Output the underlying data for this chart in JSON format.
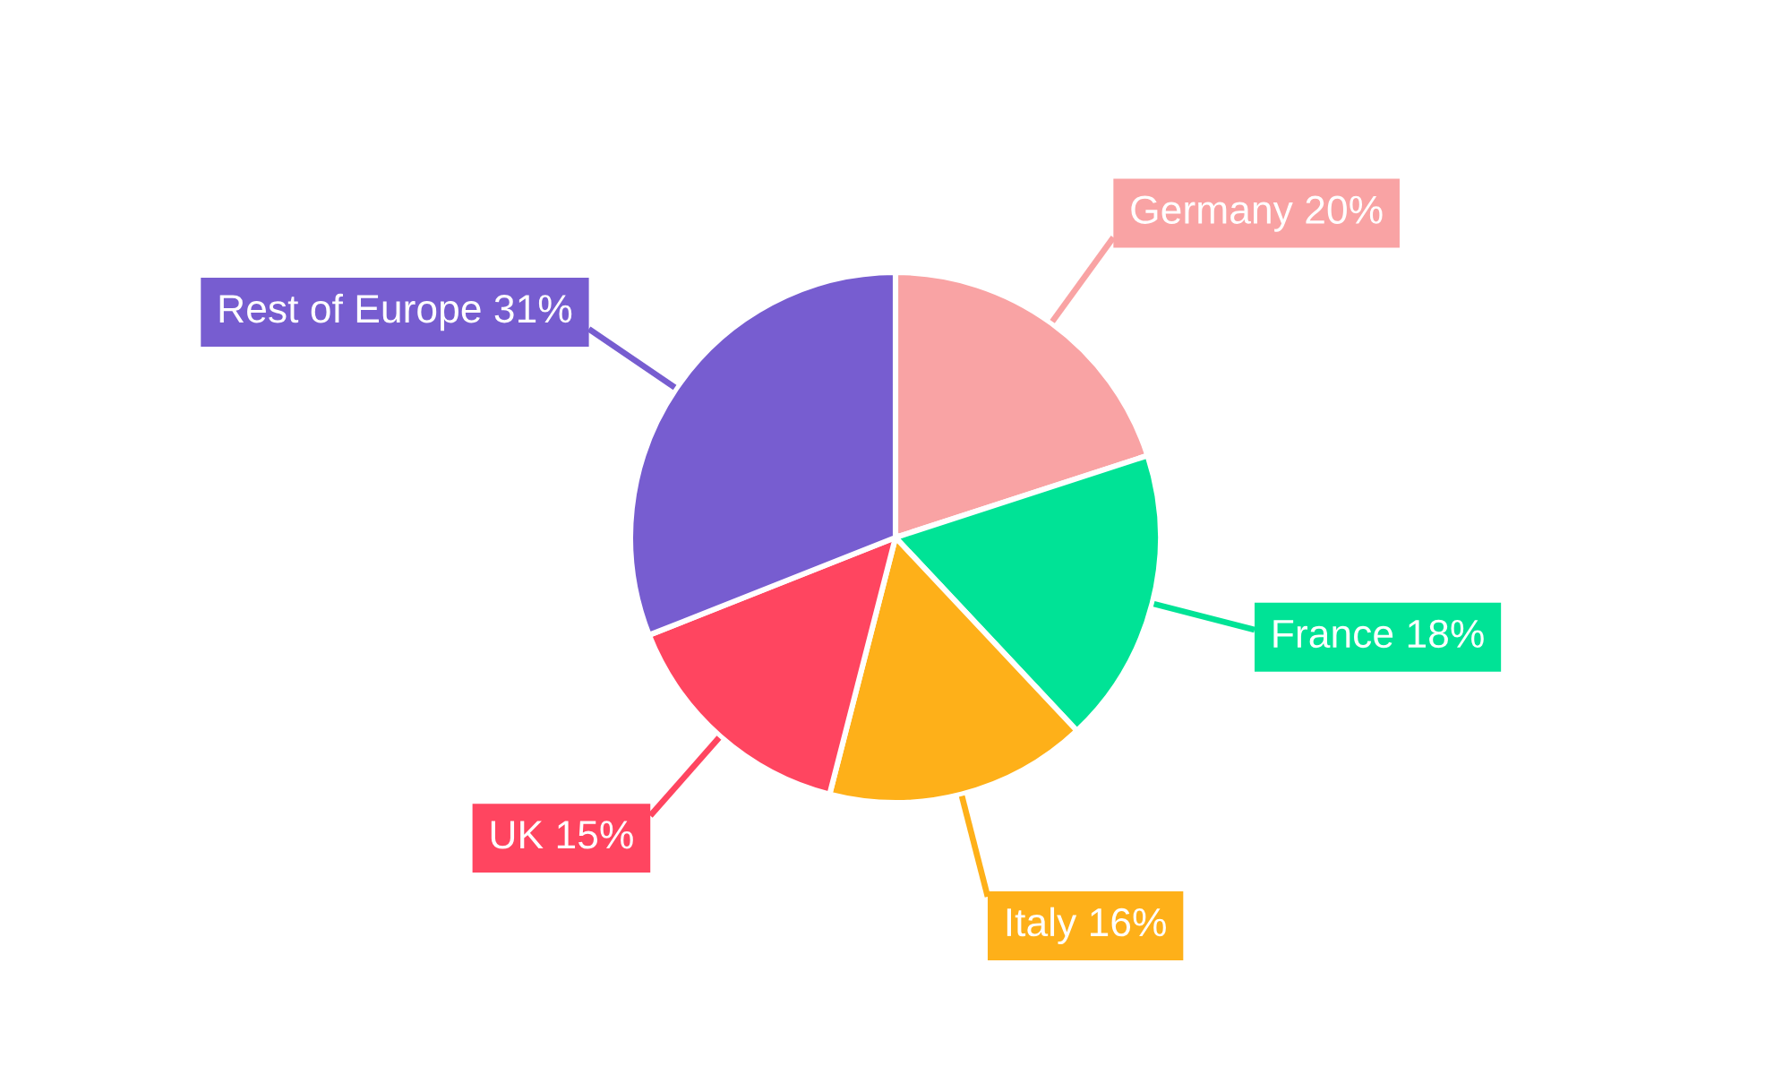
{
  "chart_data": {
    "type": "pie",
    "categories": [
      "Germany",
      "France",
      "Italy",
      "UK",
      "Rest of Europe"
    ],
    "values": [
      20,
      18,
      16,
      15,
      31
    ],
    "value_labels": [
      "20%",
      "18%",
      "16%",
      "15%",
      "31%"
    ],
    "colors": [
      "#f9a3a4",
      "#00e396",
      "#feb019",
      "#ff4560",
      "#775dd0"
    ]
  }
}
